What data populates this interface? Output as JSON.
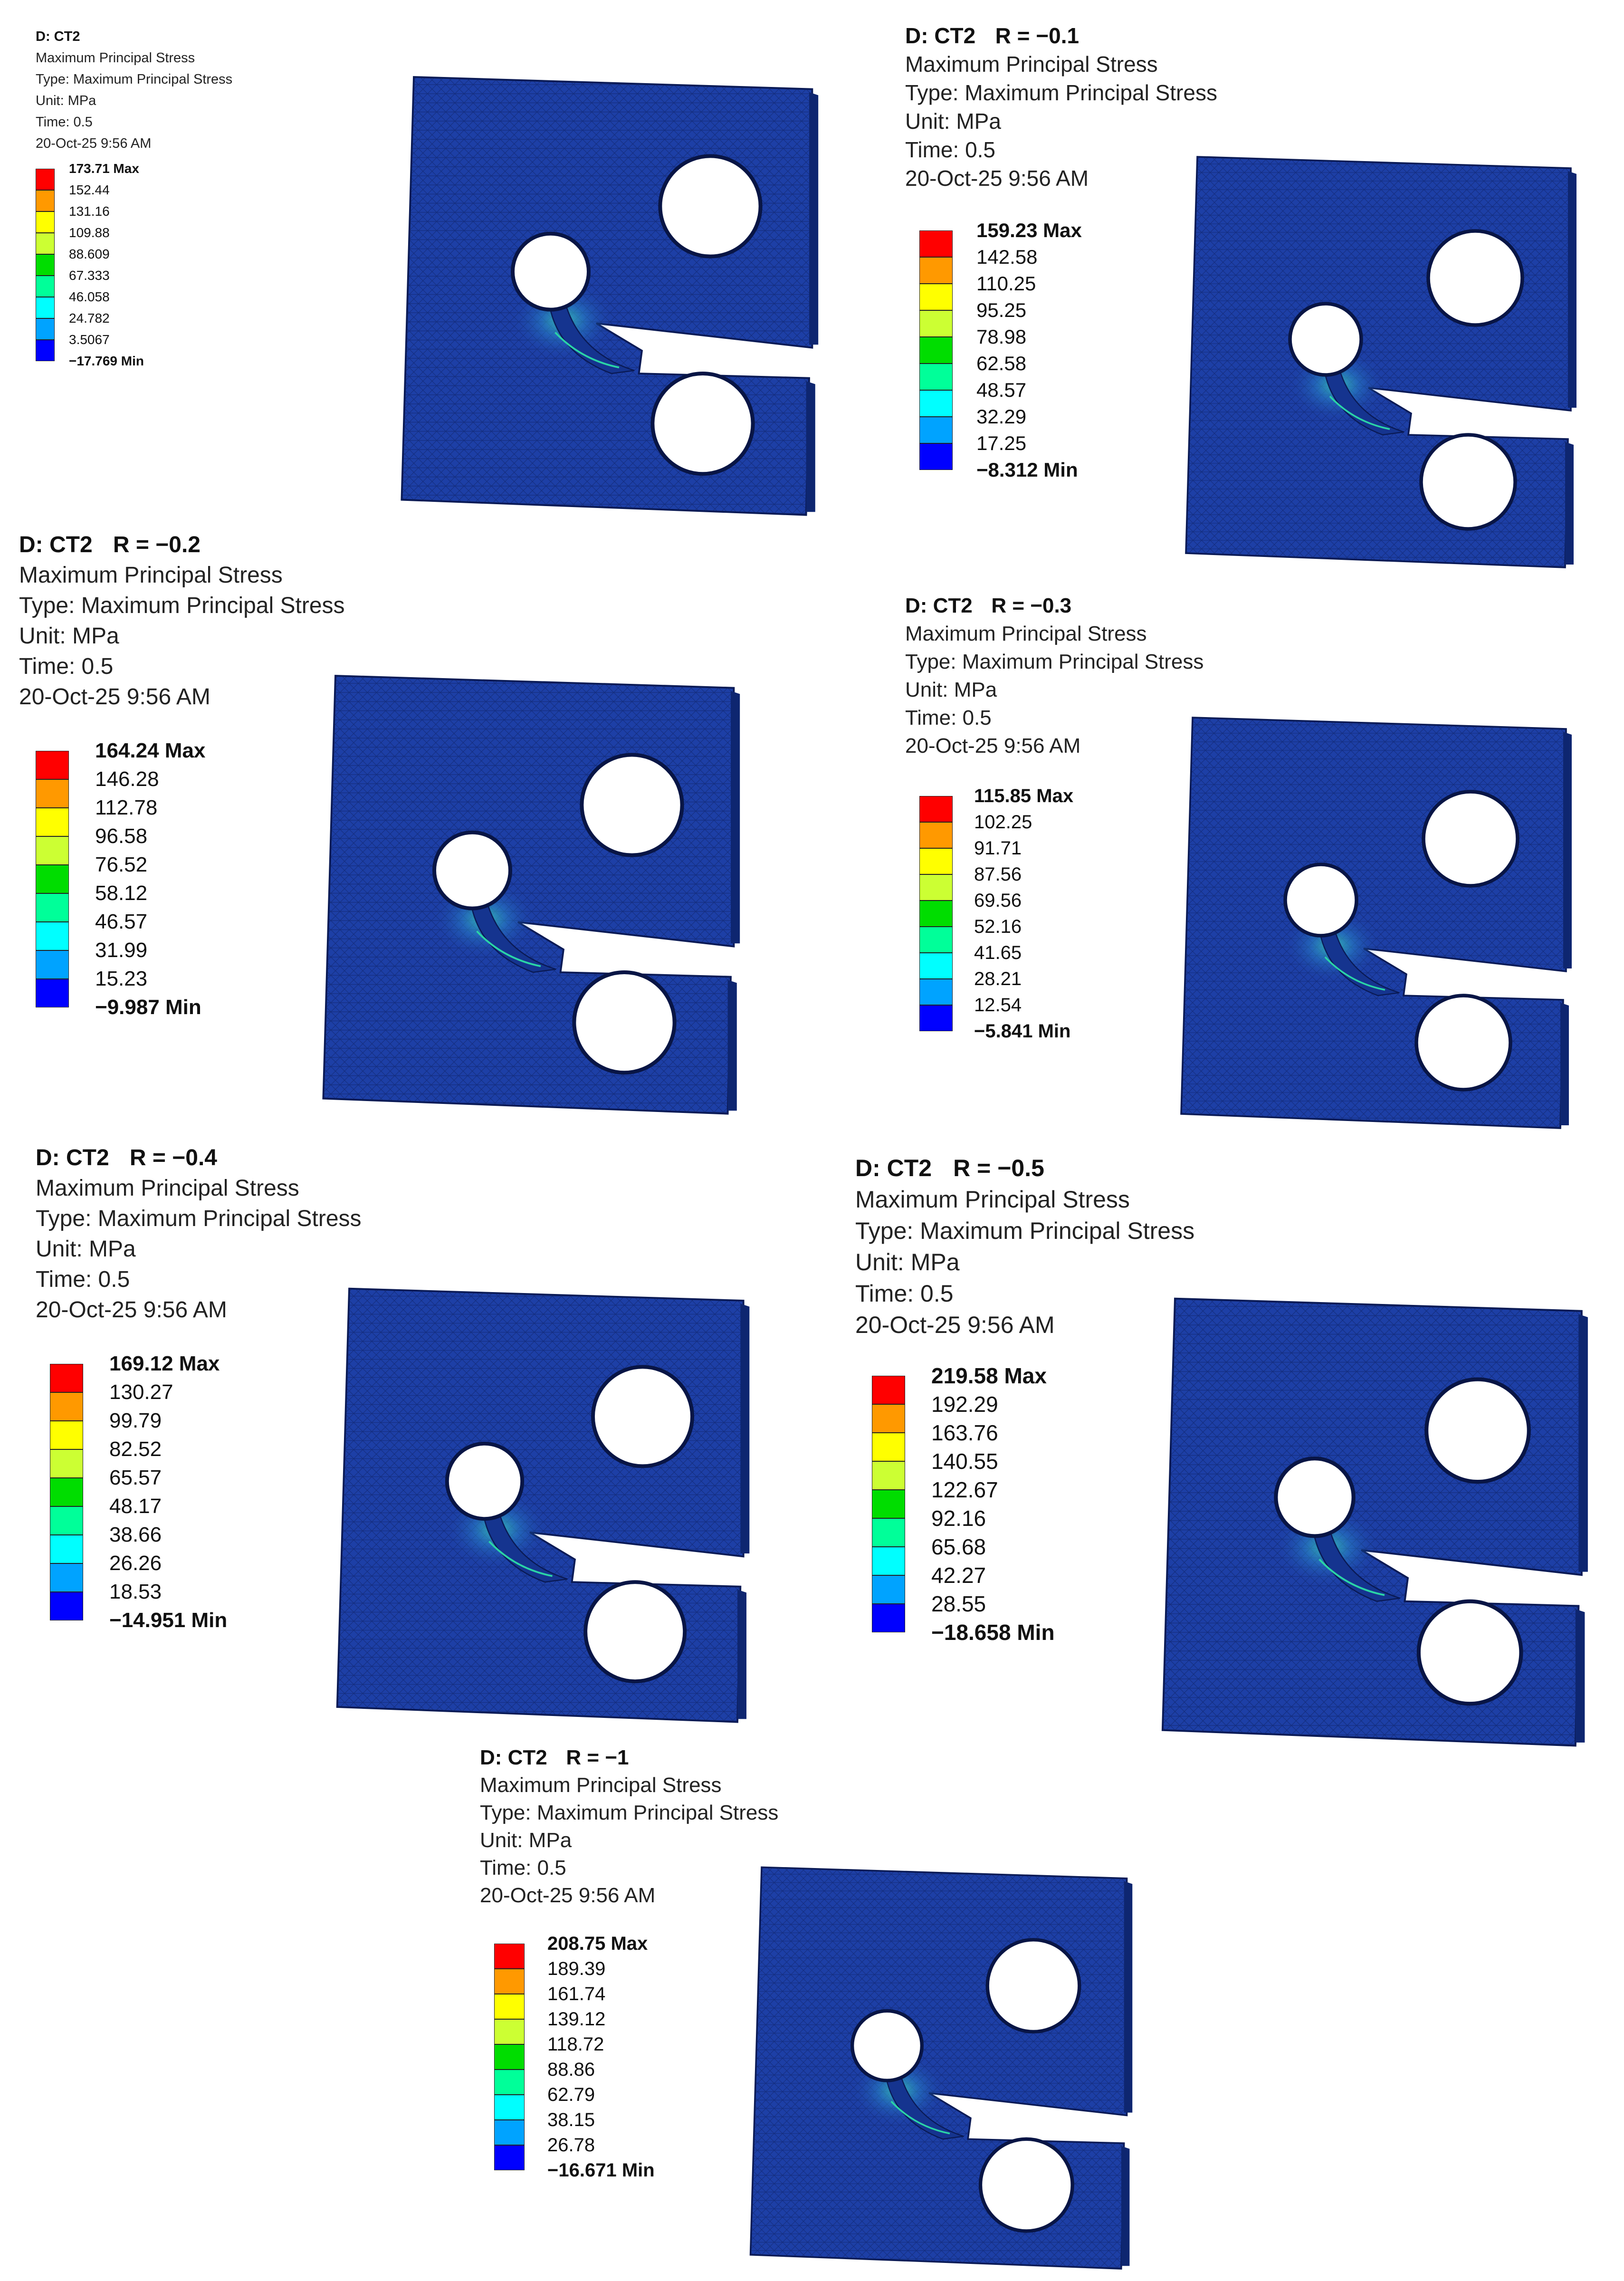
{
  "colors": {
    "scale": [
      "#ff0000",
      "#ff9900",
      "#ffff00",
      "#ccff33",
      "#00dd00",
      "#00ff99",
      "#00ffff",
      "#00a3ff",
      "#0000ff"
    ],
    "mesh": "#1d3fa6",
    "mesh_dark": "#11287a"
  },
  "panels": [
    {
      "title": "D: CT2",
      "ratio": "",
      "lines": [
        "Maximum Principal Stress",
        "Type: Maximum Principal Stress",
        "Unit: MPa",
        "Time: 0.5",
        "20-Oct-25 9:56 AM"
      ],
      "legend": [
        "173.71 Max",
        "152.44",
        "131.16",
        "109.88",
        "88.609",
        "67.333",
        "46.058",
        "24.782",
        "3.5067",
        "−17.769 Min"
      ]
    },
    {
      "title": "D: CT2",
      "ratio": "R = −0.1",
      "lines": [
        "Maximum Principal Stress",
        "Type: Maximum Principal Stress",
        "Unit: MPa",
        "Time: 0.5",
        "20-Oct-25 9:56 AM"
      ],
      "legend": [
        "159.23 Max",
        "142.58",
        "110.25",
        "95.25",
        "78.98",
        "62.58",
        "48.57",
        "32.29",
        "17.25",
        "−8.312 Min"
      ]
    },
    {
      "title": "D: CT2",
      "ratio": "R = −0.2",
      "lines": [
        "Maximum Principal Stress",
        "Type: Maximum Principal Stress",
        "Unit: MPa",
        "Time: 0.5",
        "20-Oct-25 9:56 AM"
      ],
      "legend": [
        "164.24 Max",
        "146.28",
        "112.78",
        "96.58",
        "76.52",
        "58.12",
        "46.57",
        "31.99",
        "15.23",
        "−9.987 Min"
      ]
    },
    {
      "title": "D: CT2",
      "ratio": "R = −0.3",
      "lines": [
        "Maximum Principal Stress",
        "Type: Maximum Principal Stress",
        "Unit: MPa",
        "Time: 0.5",
        "20-Oct-25 9:56 AM"
      ],
      "legend": [
        "115.85 Max",
        "102.25",
        "91.71",
        "87.56",
        "69.56",
        "52.16",
        "41.65",
        "28.21",
        "12.54",
        "−5.841 Min"
      ]
    },
    {
      "title": "D: CT2",
      "ratio": "R = −0.4",
      "lines": [
        "Maximum Principal Stress",
        "Type: Maximum Principal Stress",
        "Unit: MPa",
        "Time: 0.5",
        "20-Oct-25 9:56 AM"
      ],
      "legend": [
        "169.12 Max",
        "130.27",
        "99.79",
        "82.52",
        "65.57",
        "48.17",
        "38.66",
        "26.26",
        "18.53",
        "−14.951 Min"
      ]
    },
    {
      "title": "D: CT2",
      "ratio": "R = −0.5",
      "lines": [
        "Maximum Principal Stress",
        "Type: Maximum Principal Stress",
        "Unit: MPa",
        "Time: 0.5",
        "20-Oct-25 9:56 AM"
      ],
      "legend": [
        "219.58 Max",
        "192.29",
        "163.76",
        "140.55",
        "122.67",
        "92.16",
        "65.68",
        "42.27",
        "28.55",
        "−18.658 Min"
      ]
    },
    {
      "title": "D: CT2",
      "ratio": "R = −1",
      "lines": [
        "Maximum Principal Stress",
        "Type: Maximum Principal Stress",
        "Unit: MPa",
        "Time: 0.5",
        "20-Oct-25 9:56 AM"
      ],
      "legend": [
        "208.75 Max",
        "189.39",
        "161.74",
        "139.12",
        "118.72",
        "88.86",
        "62.79",
        "38.15",
        "26.78",
        "−16.671 Min"
      ]
    }
  ]
}
